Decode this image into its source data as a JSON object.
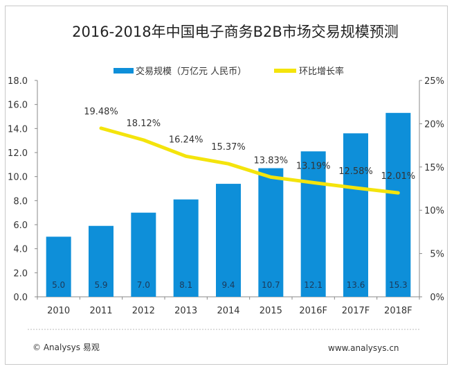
{
  "chart_data": {
    "type": "bar+line",
    "title": "2016-2018年中国电子商务B2B市场交易规模预测",
    "categories": [
      "2010",
      "2011",
      "2012",
      "2013",
      "2014",
      "2015",
      "2016F",
      "2017F",
      "2018F"
    ],
    "series": [
      {
        "name": "交易规模（万亿元  人民币）",
        "type": "bar",
        "axis": "left",
        "color": "#0e8fd9",
        "values": [
          5.0,
          5.9,
          7.0,
          8.1,
          9.4,
          10.7,
          12.1,
          13.6,
          15.3
        ],
        "labels": [
          "5.0",
          "5.9",
          "7.0",
          "8.1",
          "9.4",
          "10.7",
          "12.1",
          "13.6",
          "15.3"
        ]
      },
      {
        "name": "环比增长率",
        "type": "line",
        "axis": "right",
        "color": "#f4e40c",
        "values": [
          null,
          19.48,
          18.12,
          16.24,
          15.37,
          13.83,
          13.19,
          12.58,
          12.01
        ],
        "labels": [
          "",
          "19.48%",
          "18.12%",
          "16.24%",
          "15.37%",
          "13.83%",
          "13.19%",
          "12.58%",
          "12.01%"
        ]
      }
    ],
    "y_left": {
      "range": [
        0,
        18
      ],
      "ticks": [
        "0.0",
        "2.0",
        "4.0",
        "6.0",
        "8.0",
        "10.0",
        "12.0",
        "14.0",
        "16.0",
        "18.0"
      ]
    },
    "y_right": {
      "range": [
        0,
        25
      ],
      "ticks": [
        "0%",
        "5%",
        "10%",
        "15%",
        "20%",
        "25%"
      ]
    },
    "legend": "top",
    "grid": false
  },
  "footer": {
    "copyright": "© Analysys 易观",
    "url": "www.analysys.cn"
  }
}
